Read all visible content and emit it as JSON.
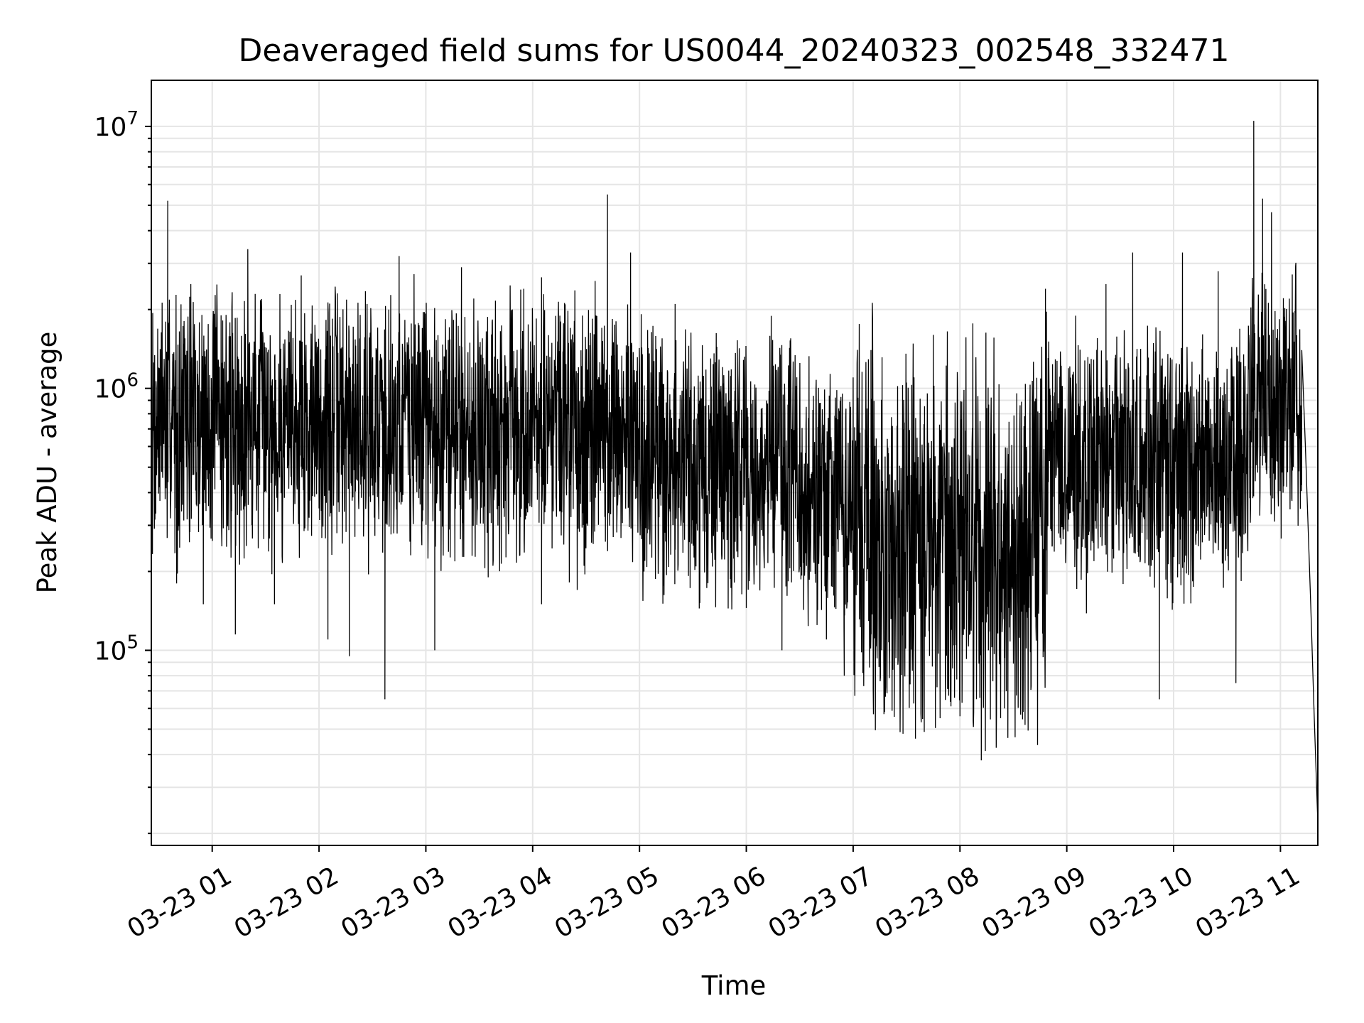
{
  "chart_data": {
    "type": "line",
    "title": "Deaveraged field sums for US0044_20240323_002548_332471",
    "xlabel": "Time",
    "ylabel": "Peak ADU - average",
    "yscale": "log",
    "ylim": [
      18000,
      15000000
    ],
    "xlim": [
      "2024-03-23 00:25:48",
      "2024-03-23 11:21:00"
    ],
    "grid": true,
    "x_ticks": [
      "03-23 01",
      "03-23 02",
      "03-23 03",
      "03-23 04",
      "03-23 05",
      "03-23 06",
      "03-23 07",
      "03-23 08",
      "03-23 09",
      "03-23 10",
      "03-23 11"
    ],
    "y_ticks": [
      {
        "value": 100000,
        "base": "10",
        "exp": "5"
      },
      {
        "value": 1000000,
        "base": "10",
        "exp": "6"
      },
      {
        "value": 10000000,
        "base": "10",
        "exp": "7"
      }
    ],
    "series": [
      {
        "color": "#000000",
        "points": [
          [
            "2024-03-23 00:25:48",
            650000
          ],
          [
            "2024-03-23 00:30:00",
            1200000
          ],
          [
            "2024-03-23 00:35:00",
            5200000
          ],
          [
            "2024-03-23 00:40:00",
            180000
          ],
          [
            "2024-03-23 00:48:00",
            2500000
          ],
          [
            "2024-03-23 00:55:00",
            150000
          ],
          [
            "2024-03-23 01:05:00",
            1900000
          ],
          [
            "2024-03-23 01:13:00",
            115000
          ],
          [
            "2024-03-23 01:20:00",
            3400000
          ],
          [
            "2024-03-23 01:35:00",
            150000
          ],
          [
            "2024-03-23 01:50:00",
            2700000
          ],
          [
            "2024-03-23 02:05:00",
            110000
          ],
          [
            "2024-03-23 02:17:00",
            95000
          ],
          [
            "2024-03-23 02:27:00",
            2100000
          ],
          [
            "2024-03-23 02:37:00",
            65000
          ],
          [
            "2024-03-23 02:45:00",
            3200000
          ],
          [
            "2024-03-23 02:58:00",
            1700000
          ],
          [
            "2024-03-23 03:05:00",
            100000
          ],
          [
            "2024-03-23 03:20:00",
            2900000
          ],
          [
            "2024-03-23 03:35:00",
            190000
          ],
          [
            "2024-03-23 03:55:00",
            2400000
          ],
          [
            "2024-03-23 04:05:00",
            150000
          ],
          [
            "2024-03-23 04:25:00",
            170000
          ],
          [
            "2024-03-23 04:42:00",
            5500000
          ],
          [
            "2024-03-23 04:55:00",
            3300000
          ],
          [
            "2024-03-23 05:05:00",
            400000
          ],
          [
            "2024-03-23 05:20:00",
            2100000
          ],
          [
            "2024-03-23 05:40:00",
            1300000
          ],
          [
            "2024-03-23 06:00:00",
            145000
          ],
          [
            "2024-03-23 06:20:00",
            100000
          ],
          [
            "2024-03-23 06:45:00",
            110000
          ],
          [
            "2024-03-23 06:55:00",
            80000
          ],
          [
            "2024-03-23 07:10:00",
            1400000
          ],
          [
            "2024-03-23 07:28:00",
            48000
          ],
          [
            "2024-03-23 07:35:00",
            46000
          ],
          [
            "2024-03-23 07:45:00",
            1600000
          ],
          [
            "2024-03-23 08:00:00",
            56000
          ],
          [
            "2024-03-23 08:12:00",
            38000
          ],
          [
            "2024-03-23 08:25:00",
            60000
          ],
          [
            "2024-03-23 08:48:00",
            2400000
          ],
          [
            "2024-03-23 09:05:00",
            1500000
          ],
          [
            "2024-03-23 09:22:00",
            2500000
          ],
          [
            "2024-03-23 09:37:00",
            3300000
          ],
          [
            "2024-03-23 09:52:00",
            65000
          ],
          [
            "2024-03-23 10:05:00",
            3300000
          ],
          [
            "2024-03-23 10:25:00",
            2800000
          ],
          [
            "2024-03-23 10:35:00",
            75000
          ],
          [
            "2024-03-23 10:45:00",
            10500000
          ],
          [
            "2024-03-23 10:50:00",
            5300000
          ],
          [
            "2024-03-23 10:55:00",
            4700000
          ],
          [
            "2024-03-23 11:05:00",
            2200000
          ],
          [
            "2024-03-23 11:12:00",
            1400000
          ],
          [
            "2024-03-23 11:14:00",
            600000
          ],
          [
            "2024-03-23 11:17:00",
            150000
          ],
          [
            "2024-03-23 11:19:00",
            55000
          ],
          [
            "2024-03-23 11:21:00",
            22000
          ]
        ]
      }
    ]
  }
}
